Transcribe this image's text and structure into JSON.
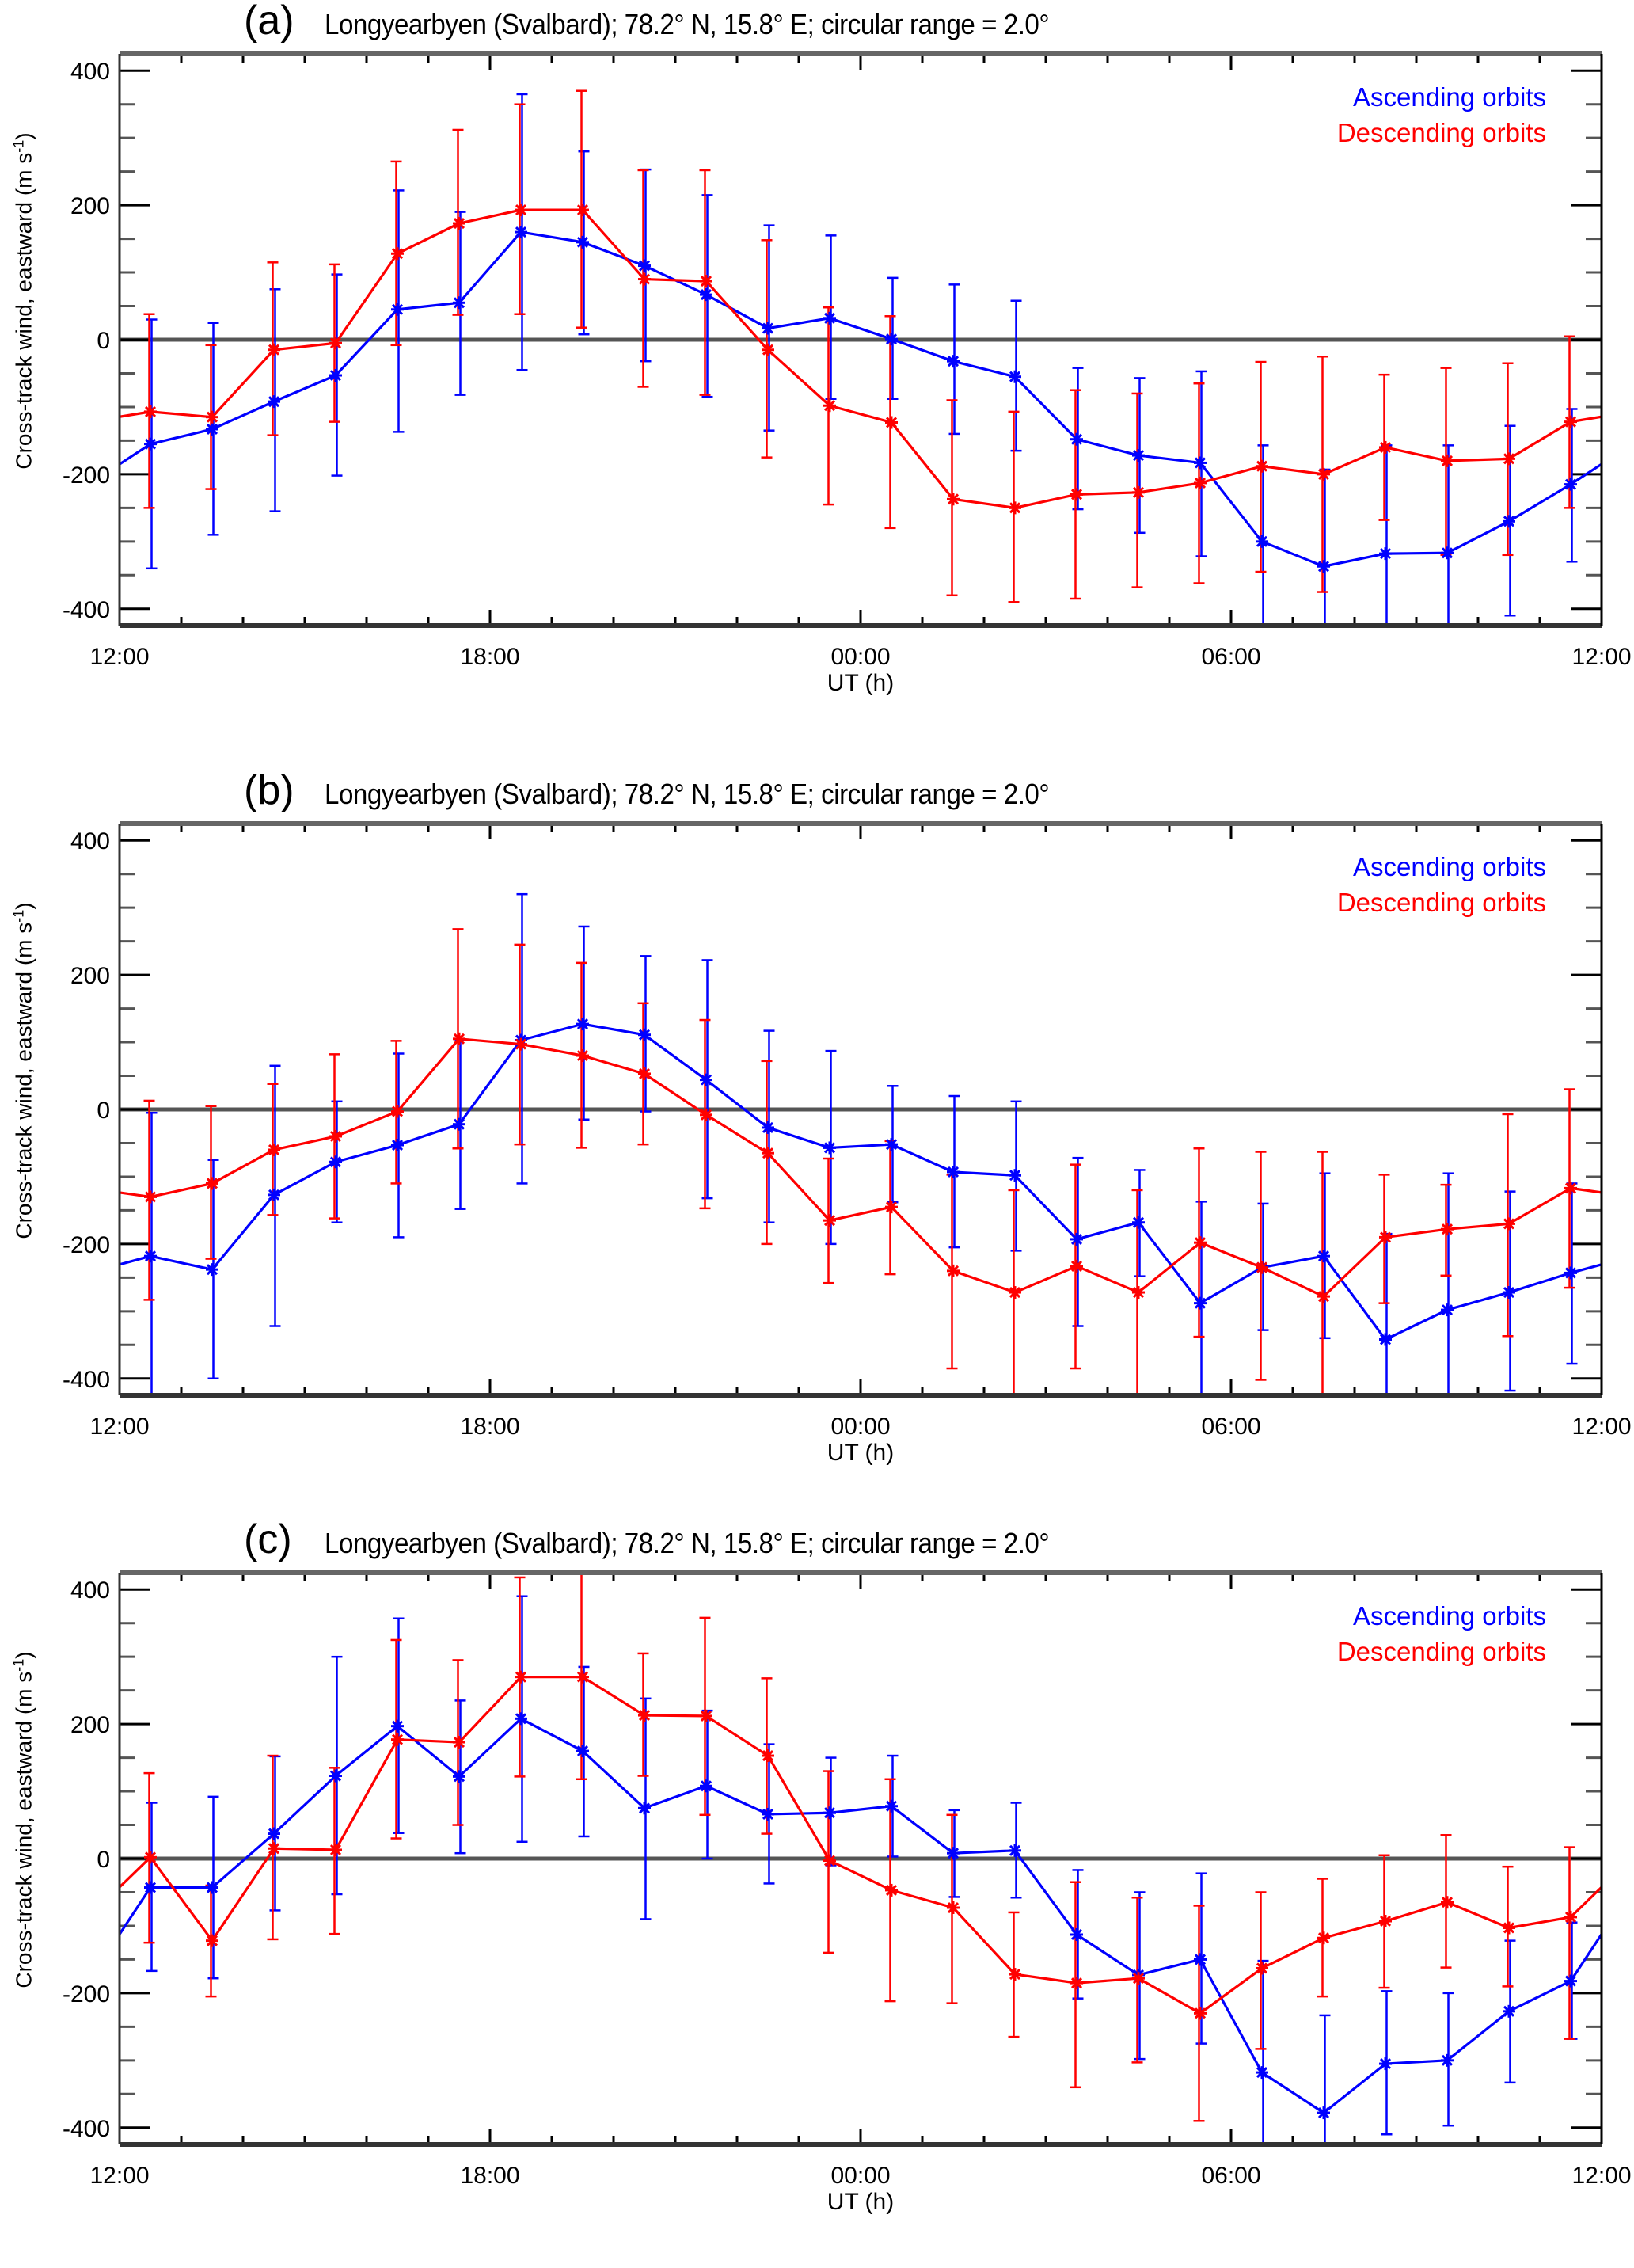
{
  "chart_data": [
    {
      "type": "line",
      "panel_label": "(a)",
      "title": "Longyearbyen (Svalbard); 78.2° N, 15.8° E; circular range = 2.0°",
      "xlabel": "UT (h)",
      "ylabel": "Cross-track wind, eastward (m s",
      "ylabel_sup": "-1",
      "ylabel_close": ")",
      "xlim_hours": [
        12,
        36
      ],
      "ylim": [
        -425,
        425
      ],
      "xticks": [
        "12:00",
        "18:00",
        "00:00",
        "06:00",
        "12:00"
      ],
      "yticks": [
        400,
        200,
        0,
        -200,
        -400
      ],
      "grid": false,
      "legend_position": "top-right",
      "x_hours": [
        12.5,
        13.5,
        14.5,
        15.5,
        16.5,
        17.5,
        18.5,
        19.5,
        20.5,
        21.5,
        22.5,
        23.5,
        24.5,
        25.5,
        26.5,
        27.5,
        28.5,
        29.5,
        30.5,
        31.5,
        32.5,
        33.5,
        34.5,
        35.5
      ],
      "series": [
        {
          "name": "Ascending orbits",
          "color": "#0000ff",
          "values": [
            -155,
            -133,
            -92,
            -53,
            45,
            55,
            160,
            145,
            110,
            67,
            17,
            32,
            1,
            -32,
            -55,
            -148,
            -172,
            -183,
            -300,
            -337,
            -318,
            -317,
            -270,
            -215
          ],
          "err_high": [
            30,
            25,
            75,
            97,
            222,
            190,
            365,
            280,
            253,
            215,
            170,
            155,
            92,
            82,
            58,
            -42,
            -57,
            -47,
            -157,
            -193,
            -157,
            -157,
            -128,
            -103
          ],
          "err_low": [
            -340,
            -290,
            -255,
            -202,
            -137,
            -82,
            -45,
            8,
            -32,
            -85,
            -135,
            -88,
            -88,
            -140,
            -165,
            -252,
            -287,
            -322,
            -500,
            -500,
            -500,
            -500,
            -410,
            -330
          ]
        },
        {
          "name": "Descending orbits",
          "color": "#ff0000",
          "values": [
            -107,
            -115,
            -15,
            -5,
            128,
            173,
            193,
            193,
            90,
            87,
            -15,
            -98,
            -123,
            -237,
            -250,
            -230,
            -227,
            -213,
            -188,
            -200,
            -160,
            -180,
            -177,
            -122
          ],
          "err_high": [
            38,
            -8,
            115,
            112,
            265,
            312,
            350,
            370,
            252,
            252,
            148,
            48,
            35,
            -90,
            -107,
            -75,
            -80,
            -65,
            -33,
            -25,
            -52,
            -42,
            -35,
            5
          ],
          "err_low": [
            -250,
            -222,
            -142,
            -122,
            -8,
            37,
            38,
            18,
            -70,
            -82,
            -175,
            -245,
            -280,
            -380,
            -390,
            -385,
            -368,
            -362,
            -345,
            -375,
            -268,
            -320,
            -320,
            -250
          ]
        }
      ]
    },
    {
      "type": "line",
      "panel_label": "(b)",
      "title": "Longyearbyen (Svalbard); 78.2° N, 15.8° E; circular range = 2.0°",
      "xlabel": "UT (h)",
      "ylabel": "Cross-track wind, eastward (m s",
      "ylabel_sup": "-1",
      "ylabel_close": ")",
      "xlim_hours": [
        12,
        36
      ],
      "ylim": [
        -425,
        425
      ],
      "xticks": [
        "12:00",
        "18:00",
        "00:00",
        "06:00",
        "12:00"
      ],
      "yticks": [
        400,
        200,
        0,
        -200,
        -400
      ],
      "grid": false,
      "legend_position": "top-right",
      "x_hours": [
        12.5,
        13.5,
        14.5,
        15.5,
        16.5,
        17.5,
        18.5,
        19.5,
        20.5,
        21.5,
        22.5,
        23.5,
        24.5,
        25.5,
        26.5,
        27.5,
        28.5,
        29.5,
        30.5,
        31.5,
        32.5,
        33.5,
        34.5,
        35.5
      ],
      "series": [
        {
          "name": "Ascending orbits",
          "color": "#0000ff",
          "values": [
            -218,
            -238,
            -127,
            -78,
            -53,
            -22,
            103,
            127,
            111,
            44,
            -27,
            -57,
            -52,
            -93,
            -98,
            -193,
            -168,
            -288,
            -235,
            -218,
            -342,
            -298,
            -272,
            -243
          ],
          "err_high": [
            -5,
            -75,
            65,
            12,
            83,
            103,
            320,
            272,
            228,
            222,
            117,
            87,
            35,
            20,
            12,
            -72,
            -90,
            -137,
            -140,
            -95,
            -185,
            -95,
            -122,
            -110
          ],
          "err_low": [
            -500,
            -400,
            -322,
            -168,
            -190,
            -148,
            -110,
            -15,
            -3,
            -132,
            -168,
            -200,
            -138,
            -205,
            -210,
            -322,
            -248,
            -500,
            -328,
            -340,
            -500,
            -500,
            -418,
            -378
          ]
        },
        {
          "name": "Descending orbits",
          "color": "#ff0000",
          "values": [
            -130,
            -110,
            -60,
            -40,
            -3,
            105,
            97,
            80,
            53,
            -8,
            -65,
            -165,
            -145,
            -240,
            -272,
            -233,
            -272,
            -198,
            -235,
            -278,
            -190,
            -178,
            -170,
            -117
          ],
          "err_high": [
            13,
            5,
            38,
            82,
            102,
            268,
            245,
            218,
            158,
            133,
            72,
            -73,
            -47,
            -97,
            -120,
            -82,
            -120,
            -58,
            -63,
            -63,
            -97,
            -112,
            -7,
            30
          ],
          "err_low": [
            -283,
            -222,
            -157,
            -162,
            -110,
            -58,
            -52,
            -57,
            -52,
            -147,
            -200,
            -258,
            -245,
            -385,
            -500,
            -385,
            -425,
            -338,
            -402,
            -500,
            -288,
            -247,
            -337,
            -265
          ]
        }
      ]
    },
    {
      "type": "line",
      "panel_label": "(c)",
      "title": "Longyearbyen (Svalbard); 78.2° N, 15.8° E; circular range = 2.0°",
      "xlabel": "UT (h)",
      "ylabel": "Cross-track wind, eastward (m s",
      "ylabel_sup": "-1",
      "ylabel_close": ")",
      "xlim_hours": [
        12,
        36
      ],
      "ylim": [
        -425,
        425
      ],
      "xticks": [
        "12:00",
        "18:00",
        "00:00",
        "06:00",
        "12:00"
      ],
      "yticks": [
        400,
        200,
        0,
        -200,
        -400
      ],
      "grid": false,
      "legend_position": "top-right",
      "x_hours": [
        12.5,
        13.5,
        14.5,
        15.5,
        16.5,
        17.5,
        18.5,
        19.5,
        20.5,
        21.5,
        22.5,
        23.5,
        24.5,
        25.5,
        26.5,
        27.5,
        28.5,
        29.5,
        30.5,
        31.5,
        32.5,
        33.5,
        34.5,
        35.5
      ],
      "series": [
        {
          "name": "Ascending orbits",
          "color": "#0000ff",
          "values": [
            -43,
            -43,
            37,
            123,
            197,
            122,
            208,
            160,
            75,
            108,
            66,
            68,
            78,
            8,
            12,
            -113,
            -173,
            -150,
            -318,
            -378,
            -305,
            -300,
            -227,
            -182
          ],
          "err_high": [
            83,
            92,
            152,
            300,
            357,
            235,
            390,
            285,
            238,
            220,
            170,
            150,
            153,
            72,
            83,
            -17,
            -50,
            -22,
            -152,
            -233,
            -197,
            -200,
            -122,
            -95
          ],
          "err_low": [
            -167,
            -178,
            -77,
            -53,
            38,
            8,
            25,
            33,
            -90,
            0,
            -37,
            -10,
            3,
            -57,
            -58,
            -208,
            -298,
            -275,
            -500,
            -500,
            -410,
            -397,
            -333,
            -268
          ]
        },
        {
          "name": "Descending orbits",
          "color": "#ff0000",
          "values": [
            2,
            -122,
            15,
            13,
            177,
            173,
            270,
            270,
            213,
            212,
            153,
            -3,
            -47,
            -73,
            -172,
            -185,
            -178,
            -230,
            -163,
            -118,
            -93,
            -65,
            -103,
            -87
          ],
          "err_high": [
            127,
            -40,
            153,
            135,
            325,
            295,
            418,
            425,
            305,
            358,
            268,
            130,
            118,
            65,
            -80,
            -35,
            -58,
            -70,
            -50,
            -30,
            5,
            35,
            -12,
            17
          ],
          "err_low": [
            -125,
            -205,
            -120,
            -112,
            30,
            50,
            122,
            118,
            123,
            65,
            37,
            -140,
            -212,
            -215,
            -265,
            -340,
            -303,
            -390,
            -283,
            -205,
            -192,
            -162,
            -190,
            -268
          ]
        }
      ]
    }
  ]
}
